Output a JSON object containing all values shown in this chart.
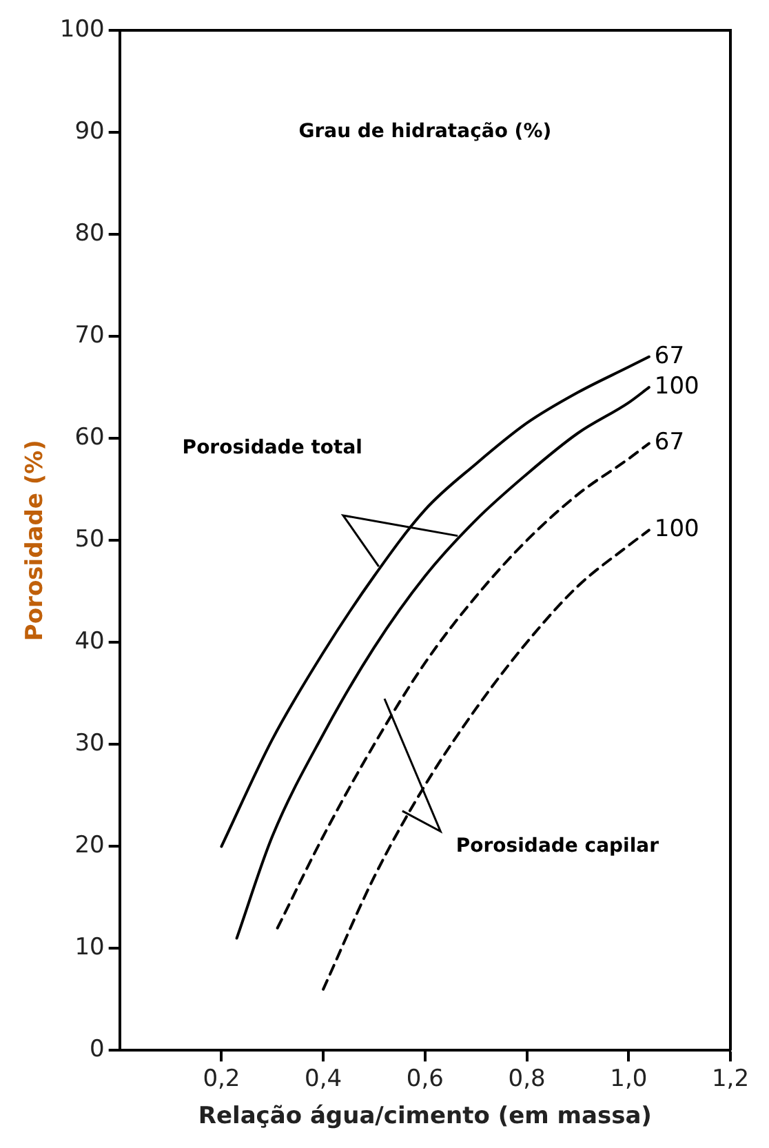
{
  "chart_data": {
    "type": "line",
    "xlabel": "Relação água/cimento (em massa)",
    "ylabel": "Porosidade (%)",
    "annotations": [
      "Grau de hidratação (%)",
      "Porosidade total",
      "Porosidade capilar"
    ],
    "xlim": [
      0,
      1.2
    ],
    "xticks": [
      {
        "value": 0.2,
        "label": "0,2"
      },
      {
        "value": 0.4,
        "label": "0,4"
      },
      {
        "value": 0.6,
        "label": "0,6"
      },
      {
        "value": 0.8,
        "label": "0,8"
      },
      {
        "value": 1.0,
        "label": "1,0"
      },
      {
        "value": 1.2,
        "label": "1,2"
      }
    ],
    "ylim": [
      0,
      100
    ],
    "yticks": [
      0,
      10,
      20,
      30,
      40,
      50,
      60,
      70,
      80,
      90,
      100
    ],
    "grid": false,
    "legend": false,
    "marker": "none",
    "series": [
      {
        "name": "67",
        "color": "#000000",
        "line_style": "solid",
        "x": [
          0.2,
          0.3,
          0.4,
          0.5,
          0.6,
          0.7,
          0.8,
          0.9,
          1.0,
          1.04
        ],
        "values": [
          20,
          30.5,
          39,
          46.5,
          53,
          57.5,
          61.5,
          64.5,
          67,
          68
        ]
      },
      {
        "name": "100",
        "color": "#000000",
        "line_style": "solid",
        "x": [
          0.23,
          0.3,
          0.4,
          0.5,
          0.6,
          0.7,
          0.8,
          0.9,
          1.0,
          1.04
        ],
        "values": [
          11,
          21,
          31,
          39.5,
          46.5,
          52,
          56.5,
          60.5,
          63.5,
          65
        ]
      },
      {
        "name": "67",
        "color": "#000000",
        "line_style": "dashed",
        "x": [
          0.31,
          0.4,
          0.5,
          0.6,
          0.7,
          0.8,
          0.9,
          1.0,
          1.04
        ],
        "values": [
          12,
          21,
          30,
          38,
          44.5,
          50,
          54.5,
          58,
          59.5
        ]
      },
      {
        "name": "100",
        "color": "#000000",
        "line_style": "dashed",
        "x": [
          0.4,
          0.5,
          0.6,
          0.7,
          0.8,
          0.9,
          1.0,
          1.04
        ],
        "values": [
          6,
          17,
          26,
          33.5,
          40,
          45.5,
          49.5,
          51
        ]
      }
    ]
  }
}
